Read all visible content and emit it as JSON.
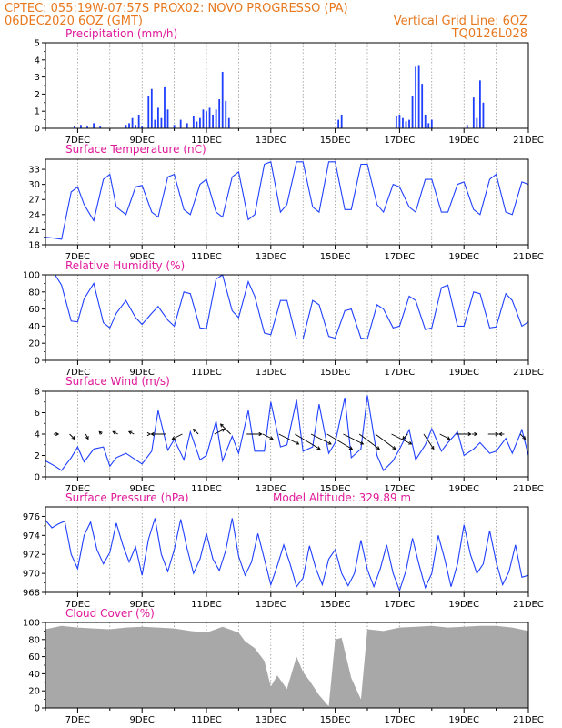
{
  "header": {
    "line1_left": "CPTEC:   055:19W-07:57S   PROX02: NOVO PROGRESSO (PA)",
    "line2_left": "06DEC2020 6OZ (GMT)",
    "line2_right": "Vertical Grid Line: 6OZ",
    "line3_right": "TQ0126L028"
  },
  "x_axis": {
    "start": "06DEC2020 06Z",
    "end": "21DEC2020 00Z",
    "tick_labels": [
      "7DEC",
      "9DEC",
      "11DEC",
      "13DEC",
      "15DEC",
      "17DEC",
      "19DEC",
      "21DEC"
    ],
    "tick_days": [
      1,
      3,
      5,
      7,
      9,
      11,
      13,
      15
    ],
    "grid": "vertical dashed at 06Z daily"
  },
  "colors": {
    "series": "#1f3fff",
    "cloud": "#a8a8a8",
    "title": "#e0189a",
    "header": "#e8781e"
  },
  "chart_data": [
    {
      "type": "bar",
      "title": "Precipitation (mm/h)",
      "ylim": [
        0,
        5
      ],
      "yticks": [
        "0",
        "1",
        "2",
        "3",
        "4",
        "5"
      ],
      "x_days": [
        0.9,
        1.1,
        1.3,
        1.5,
        1.7,
        2.5,
        2.6,
        2.7,
        2.8,
        2.9,
        3.0,
        3.2,
        3.3,
        3.4,
        3.5,
        3.6,
        3.7,
        3.8,
        4.0,
        4.2,
        4.4,
        4.6,
        4.7,
        4.8,
        4.9,
        5.0,
        5.1,
        5.2,
        5.3,
        5.4,
        5.5,
        5.6,
        5.7,
        9.1,
        9.2,
        10.9,
        11.0,
        11.1,
        11.2,
        11.3,
        11.4,
        11.5,
        11.6,
        11.7,
        11.8,
        11.9,
        12.0,
        13.1,
        13.3,
        13.4,
        13.5,
        13.6
      ],
      "values": [
        0.1,
        0.2,
        0.1,
        0.3,
        0.1,
        0.2,
        0.3,
        0.6,
        0.2,
        0.8,
        0.1,
        1.9,
        2.3,
        0.5,
        1.2,
        0.6,
        2.4,
        1.1,
        0.2,
        0.5,
        0.3,
        0.7,
        0.4,
        0.6,
        1.1,
        1.0,
        1.2,
        0.8,
        1.1,
        1.7,
        3.3,
        1.6,
        0.6,
        0.5,
        0.8,
        0.7,
        0.8,
        0.6,
        0.4,
        0.5,
        1.9,
        3.6,
        3.7,
        2.6,
        0.8,
        0.3,
        0.5,
        0.2,
        1.8,
        0.6,
        2.8,
        1.5
      ]
    },
    {
      "type": "line",
      "title": "Surface Temperature (nC)",
      "ylim": [
        18,
        35
      ],
      "yticks": [
        "18",
        "21",
        "24",
        "27",
        "30",
        "33"
      ],
      "x_days": [
        0.0,
        0.3,
        0.5,
        0.8,
        1.0,
        1.2,
        1.5,
        1.8,
        2.0,
        2.2,
        2.5,
        2.8,
        3.0,
        3.3,
        3.5,
        3.8,
        4.0,
        4.3,
        4.5,
        4.8,
        5.0,
        5.3,
        5.5,
        5.8,
        6.0,
        6.3,
        6.5,
        6.8,
        7.0,
        7.3,
        7.5,
        7.8,
        8.0,
        8.3,
        8.5,
        8.8,
        9.0,
        9.3,
        9.5,
        9.8,
        10.0,
        10.3,
        10.5,
        10.8,
        11.0,
        11.3,
        11.5,
        11.8,
        12.0,
        12.3,
        12.5,
        12.8,
        13.0,
        13.3,
        13.5,
        13.8,
        14.0,
        14.3,
        14.5,
        14.8,
        15.0
      ],
      "values": [
        19.5,
        19.3,
        19.1,
        28.5,
        29.5,
        26.0,
        22.8,
        31.0,
        32.0,
        25.5,
        24.0,
        29.5,
        29.8,
        24.5,
        23.5,
        31.5,
        32.0,
        25.0,
        24.0,
        30.0,
        31.0,
        24.5,
        23.5,
        31.5,
        32.5,
        23.0,
        24.0,
        34.0,
        34.5,
        24.5,
        26.0,
        34.5,
        34.5,
        25.5,
        24.5,
        34.5,
        34.5,
        25.0,
        25.0,
        34.0,
        34.0,
        26.0,
        24.5,
        30.0,
        29.5,
        25.5,
        24.5,
        31.0,
        31.0,
        24.5,
        24.5,
        30.0,
        30.5,
        25.0,
        24.0,
        31.0,
        32.0,
        24.5,
        24.0,
        30.5,
        30.0
      ]
    },
    {
      "type": "line",
      "title": "Relative Humidity (%)",
      "ylim": [
        0,
        100
      ],
      "yticks": [
        "0",
        "20",
        "40",
        "60",
        "80",
        "100"
      ],
      "x_days": [
        0.0,
        0.3,
        0.5,
        0.8,
        1.0,
        1.2,
        1.5,
        1.8,
        2.0,
        2.2,
        2.5,
        2.8,
        3.0,
        3.3,
        3.5,
        3.8,
        4.0,
        4.3,
        4.5,
        4.8,
        5.0,
        5.3,
        5.5,
        5.8,
        6.0,
        6.3,
        6.5,
        6.8,
        7.0,
        7.3,
        7.5,
        7.8,
        8.0,
        8.3,
        8.5,
        8.8,
        9.0,
        9.3,
        9.5,
        9.8,
        10.0,
        10.3,
        10.5,
        10.8,
        11.0,
        11.3,
        11.5,
        11.8,
        12.0,
        12.3,
        12.5,
        12.8,
        13.0,
        13.3,
        13.5,
        13.8,
        14.0,
        14.3,
        14.5,
        14.8,
        15.0
      ],
      "values": [
        100,
        100,
        88,
        46,
        45,
        72,
        90,
        44,
        38,
        55,
        70,
        50,
        42,
        55,
        63,
        47,
        40,
        80,
        78,
        38,
        37,
        95,
        100,
        58,
        50,
        92,
        75,
        32,
        30,
        70,
        70,
        25,
        25,
        70,
        65,
        28,
        26,
        58,
        60,
        26,
        25,
        65,
        60,
        38,
        40,
        75,
        70,
        36,
        38,
        85,
        88,
        40,
        40,
        80,
        78,
        38,
        39,
        78,
        70,
        40,
        45
      ]
    },
    {
      "type": "line",
      "title": "Surface Wind (m/s)",
      "ylim": [
        0,
        8
      ],
      "yticks": [
        "0",
        "2",
        "4",
        "6",
        "8"
      ],
      "x_days": [
        0.0,
        0.3,
        0.5,
        0.8,
        1.0,
        1.2,
        1.5,
        1.8,
        2.0,
        2.2,
        2.5,
        2.8,
        3.0,
        3.3,
        3.5,
        3.8,
        4.0,
        4.3,
        4.5,
        4.8,
        5.0,
        5.3,
        5.5,
        5.8,
        6.0,
        6.3,
        6.5,
        6.8,
        7.0,
        7.3,
        7.5,
        7.8,
        8.0,
        8.3,
        8.5,
        8.8,
        9.0,
        9.3,
        9.5,
        9.8,
        10.0,
        10.3,
        10.5,
        10.8,
        11.0,
        11.3,
        11.5,
        11.8,
        12.0,
        12.3,
        12.5,
        12.8,
        13.0,
        13.3,
        13.5,
        13.8,
        14.0,
        14.3,
        14.5,
        14.8,
        15.0
      ],
      "values": [
        1.5,
        1.0,
        0.6,
        1.8,
        2.8,
        1.4,
        2.6,
        2.8,
        1.0,
        1.8,
        2.2,
        1.6,
        1.2,
        2.4,
        6.2,
        2.5,
        3.5,
        1.6,
        4.2,
        1.6,
        2.0,
        5.2,
        1.5,
        3.8,
        2.2,
        6.2,
        2.4,
        2.4,
        7.0,
        2.8,
        3.0,
        7.2,
        2.4,
        2.8,
        6.8,
        2.2,
        3.2,
        7.4,
        1.8,
        2.6,
        7.6,
        2.0,
        0.6,
        1.5,
        2.6,
        4.4,
        1.6,
        3.0,
        4.5,
        2.4,
        3.2,
        4.2,
        2.0,
        2.6,
        3.2,
        2.2,
        2.4,
        3.6,
        2.2,
        4.4,
        2.0
      ],
      "arrow_x_days": [
        0.25,
        0.75,
        1.25,
        1.75,
        2.25,
        2.75,
        3.25,
        3.75,
        4.25,
        4.75,
        5.25,
        5.75,
        6.25,
        6.75,
        7.25,
        7.75,
        8.25,
        8.75,
        9.25,
        9.75,
        10.25,
        10.75,
        11.25,
        11.75,
        12.25,
        12.75,
        13.25,
        13.75,
        14.25,
        14.75
      ],
      "arrow_u": [
        1,
        1,
        0.5,
        -0.5,
        -1,
        -1,
        0,
        -3,
        -2,
        -1,
        2,
        -2,
        3,
        2,
        4,
        5,
        4,
        5,
        4,
        4,
        4,
        4,
        -1,
        2,
        2,
        3,
        1,
        2,
        -1,
        1
      ],
      "arrow_v": [
        0,
        -1,
        -1,
        0.5,
        0.5,
        0.5,
        0,
        0,
        -1,
        1,
        1,
        2,
        0,
        -1,
        -2,
        -3,
        -2,
        -3,
        -2,
        -3,
        -3,
        -2,
        -1,
        -3,
        -1,
        0,
        0,
        0,
        0,
        -1
      ]
    },
    {
      "type": "line",
      "title": "Surface Pressure (hPa)",
      "annotation": "Model Altitude: 329.89 m",
      "ylim": [
        968,
        977
      ],
      "yticks": [
        "968",
        "970",
        "972",
        "974",
        "976"
      ],
      "x_days": [
        0.0,
        0.2,
        0.4,
        0.6,
        0.8,
        1.0,
        1.2,
        1.4,
        1.6,
        1.8,
        2.0,
        2.2,
        2.4,
        2.6,
        2.8,
        3.0,
        3.2,
        3.4,
        3.6,
        3.8,
        4.0,
        4.2,
        4.4,
        4.6,
        4.8,
        5.0,
        5.2,
        5.4,
        5.6,
        5.8,
        6.0,
        6.2,
        6.4,
        6.6,
        6.8,
        7.0,
        7.2,
        7.4,
        7.6,
        7.8,
        8.0,
        8.2,
        8.4,
        8.6,
        8.8,
        9.0,
        9.2,
        9.4,
        9.6,
        9.8,
        10.0,
        10.2,
        10.4,
        10.6,
        10.8,
        11.0,
        11.2,
        11.4,
        11.6,
        11.8,
        12.0,
        12.2,
        12.4,
        12.6,
        12.8,
        13.0,
        13.2,
        13.4,
        13.6,
        13.8,
        14.0,
        14.2,
        14.4,
        14.6,
        14.8,
        15.0
      ],
      "values": [
        975.6,
        974.8,
        975.2,
        975.5,
        972.0,
        970.5,
        974.0,
        975.4,
        972.5,
        971.0,
        972.2,
        975.3,
        973.0,
        971.2,
        972.8,
        969.8,
        973.6,
        975.8,
        972.0,
        970.2,
        972.5,
        975.7,
        972.6,
        970.0,
        971.5,
        974.2,
        971.5,
        970.3,
        972.4,
        975.8,
        971.8,
        969.8,
        971.2,
        974.2,
        971.5,
        968.8,
        970.8,
        973.0,
        971.0,
        968.6,
        969.5,
        972.9,
        970.5,
        968.8,
        971.5,
        972.5,
        970.0,
        968.7,
        970.0,
        973.5,
        970.4,
        968.6,
        970.5,
        973.0,
        970.0,
        968.2,
        970.3,
        973.7,
        971.0,
        968.5,
        970.0,
        974.0,
        971.5,
        968.6,
        971.0,
        975.1,
        972.0,
        970.0,
        971.0,
        974.5,
        971.2,
        968.8,
        970.2,
        973.0,
        969.6,
        969.8
      ]
    },
    {
      "type": "bar",
      "title": "Cloud Cover (%)",
      "ylim": [
        0,
        100
      ],
      "yticks": [
        "0",
        "20",
        "40",
        "60",
        "80",
        "100"
      ],
      "x_days": [
        0.0,
        0.5,
        1.0,
        1.5,
        2.0,
        2.5,
        3.0,
        3.5,
        4.0,
        4.5,
        5.0,
        5.5,
        6.0,
        6.2,
        6.5,
        6.8,
        7.0,
        7.2,
        7.5,
        7.8,
        8.0,
        8.2,
        8.5,
        8.8,
        9.0,
        9.2,
        9.5,
        9.8,
        10.0,
        10.5,
        11.0,
        11.5,
        12.0,
        12.5,
        13.0,
        13.5,
        14.0,
        14.5,
        15.0
      ],
      "values": [
        92,
        96,
        94,
        93,
        92,
        94,
        95,
        94,
        93,
        90,
        88,
        95,
        88,
        78,
        70,
        55,
        25,
        38,
        22,
        60,
        42,
        32,
        15,
        2,
        80,
        82,
        35,
        10,
        92,
        90,
        94,
        95,
        96,
        94,
        95,
        96,
        96,
        94,
        90
      ]
    }
  ]
}
